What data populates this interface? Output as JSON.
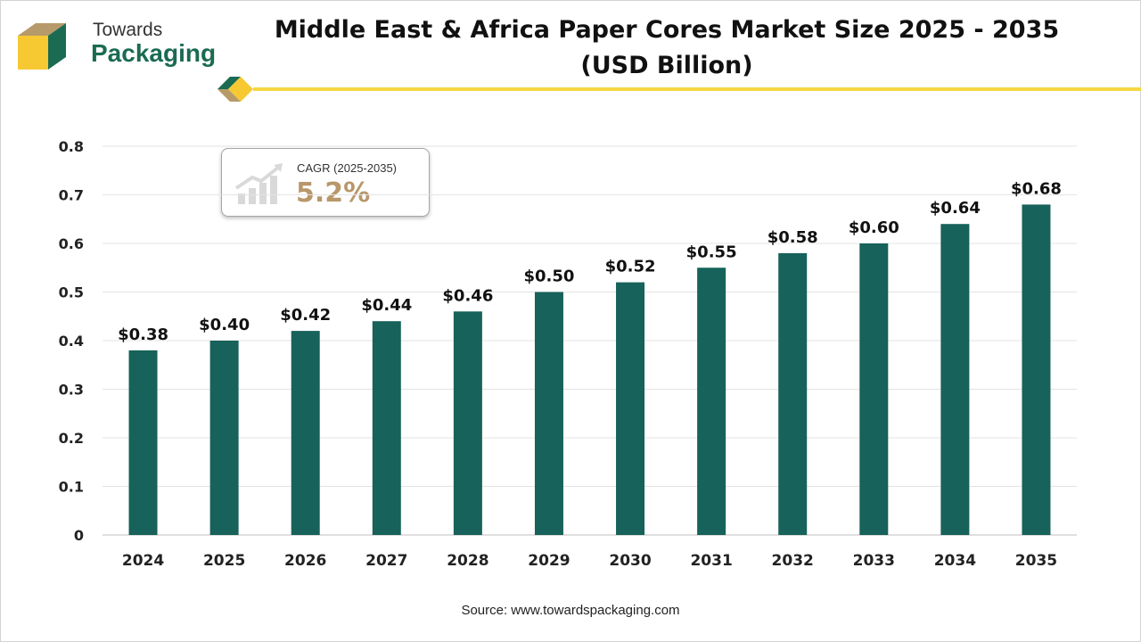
{
  "header": {
    "logo_text_top": "Towards",
    "logo_text_bottom": "Packaging",
    "title_line1": "Middle East & Africa Paper Cores Market Size 2025 - 2035",
    "title_line2": "(USD Billion)"
  },
  "cagr": {
    "label": "CAGR (2025-2035)",
    "value": "5.2%",
    "icon": "growth-bars-arrow-icon"
  },
  "source": "Source: www.towardspackaging.com",
  "colors": {
    "bar": "#17625a",
    "logo_green": "#1a6b52",
    "logo_yellow": "#f6c933",
    "logo_tan": "#b79a6a",
    "cagr_value": "#b8976a",
    "accent_line": "#f5d742",
    "gridline": "#e3e3e3"
  },
  "chart_data": {
    "type": "bar",
    "categories": [
      "2024",
      "2025",
      "2026",
      "2027",
      "2028",
      "2029",
      "2030",
      "2031",
      "2032",
      "2033",
      "2034",
      "2035"
    ],
    "values": [
      0.38,
      0.4,
      0.42,
      0.44,
      0.46,
      0.5,
      0.52,
      0.55,
      0.58,
      0.6,
      0.64,
      0.68
    ],
    "data_labels": [
      "$0.38",
      "$0.40",
      "$0.42",
      "$0.44",
      "$0.46",
      "$0.50",
      "$0.52",
      "$0.55",
      "$0.58",
      "$0.60",
      "$0.64",
      "$0.68"
    ],
    "yticks": [
      "0",
      "0.1",
      "0.2",
      "0.3",
      "0.4",
      "0.5",
      "0.6",
      "0.7",
      "0.8"
    ],
    "ylim": [
      0,
      0.8
    ],
    "title": "Middle East & Africa Paper Cores Market Size 2025 - 2035 (USD Billion)",
    "xlabel": "",
    "ylabel": "",
    "grid": true,
    "legend": "none"
  }
}
